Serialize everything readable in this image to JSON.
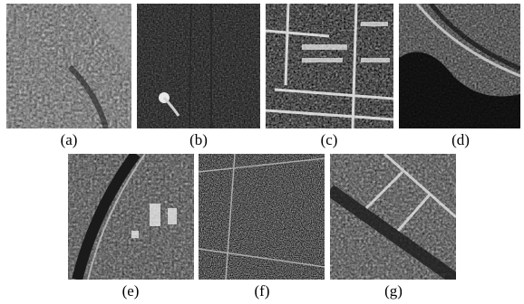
{
  "panels": [
    {
      "id": "a",
      "caption": "(a)",
      "tone": "textured-urban"
    },
    {
      "id": "b",
      "caption": "(b)",
      "tone": "dark-with-bright-blob"
    },
    {
      "id": "c",
      "caption": "(c)",
      "tone": "bright-grid"
    },
    {
      "id": "d",
      "caption": "(d)",
      "tone": "dark-road-curve"
    },
    {
      "id": "e",
      "caption": "(e)",
      "tone": "curved-road-urban"
    },
    {
      "id": "f",
      "caption": "(f)",
      "tone": "dense-speckle"
    },
    {
      "id": "g",
      "caption": "(g)",
      "tone": "diagonal-blocks"
    }
  ],
  "colors": {
    "background": "#ffffff",
    "text": "#000000"
  }
}
